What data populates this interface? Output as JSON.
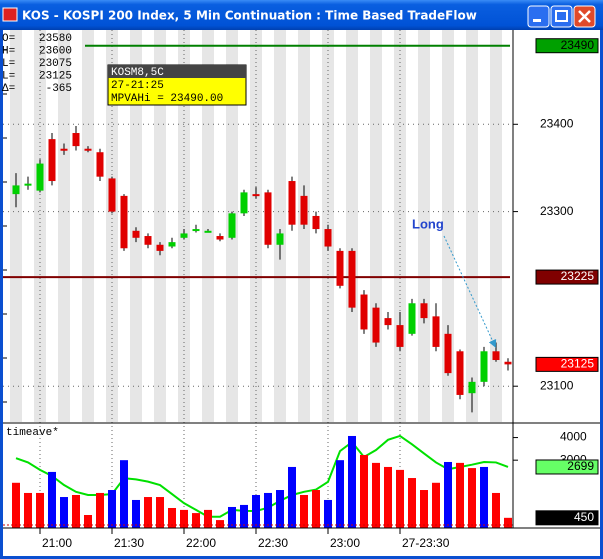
{
  "window": {
    "title": "KOS - KOSPI 200 Index, 5 Min Continuation : Time Based TradeFlow"
  },
  "info": [
    [
      "O=",
      "23580"
    ],
    [
      "H=",
      "23600"
    ],
    [
      "L=",
      "23075"
    ],
    [
      "L=",
      "23125"
    ],
    [
      "Δ=",
      "-365"
    ]
  ],
  "tooltip": [
    "KOSM8,5C",
    "27-21:25",
    "MPVAHi = 23490.00"
  ],
  "chart_data": [
    {
      "type": "candlestick",
      "open": [
        23320,
        23330,
        23324,
        23383,
        23372,
        23390,
        23372,
        23368,
        23338,
        23318,
        23278,
        23272,
        23262,
        23260,
        23270,
        23280,
        23278,
        23272,
        23270,
        23298,
        23320,
        23322,
        23262,
        23335,
        23318,
        23295,
        23280,
        23255,
        23255,
        23205,
        23190,
        23178,
        23170,
        23160,
        23195,
        23180,
        23160,
        23140,
        23092,
        23105,
        23140,
        23128
      ],
      "high": [
        23344,
        23340,
        23360,
        23390,
        23378,
        23398,
        23375,
        23372,
        23340,
        23320,
        23282,
        23275,
        23265,
        23270,
        23280,
        23285,
        23280,
        23275,
        23300,
        23325,
        23328,
        23325,
        23280,
        23340,
        23330,
        23300,
        23285,
        23258,
        23258,
        23210,
        23195,
        23185,
        23185,
        23200,
        23200,
        23195,
        23170,
        23142,
        23110,
        23145,
        23150,
        23132
      ],
      "low": [
        23305,
        23325,
        23322,
        23330,
        23365,
        23370,
        23368,
        23335,
        23298,
        23255,
        23265,
        23258,
        23250,
        23258,
        23268,
        23276,
        23276,
        23266,
        23268,
        23295,
        23315,
        23258,
        23245,
        23278,
        23280,
        23275,
        23255,
        23212,
        23185,
        23160,
        23145,
        23165,
        23140,
        23158,
        23172,
        23140,
        23112,
        23085,
        23070,
        23100,
        23128,
        23118
      ],
      "close": [
        23330,
        23332,
        23355,
        23335,
        23370,
        23375,
        23370,
        23340,
        23300,
        23258,
        23270,
        23262,
        23255,
        23265,
        23275,
        23280,
        23278,
        23268,
        23298,
        23322,
        23318,
        23262,
        23275,
        23285,
        23285,
        23280,
        23260,
        23215,
        23190,
        23165,
        23150,
        23170,
        23145,
        23195,
        23178,
        23145,
        23115,
        23090,
        23105,
        23140,
        23130,
        23125
      ],
      "up_color": "#00d000",
      "down_color": "#e00000",
      "last_color": "#ff0000",
      "ylim": [
        23059,
        23508
      ],
      "yticks": [
        23100,
        23300,
        23400
      ],
      "levels": [
        {
          "value": 23490,
          "color": "#008000",
          "box_color": "#00a000"
        },
        {
          "value": 23225,
          "color": "#800000",
          "box_color": "#800000"
        }
      ],
      "annotation": "Long"
    },
    {
      "type": "bar_line",
      "categories": [
        null,
        null,
        "21:00",
        null,
        null,
        null,
        null,
        null,
        "21:30",
        null,
        null,
        null,
        null,
        null,
        "22:00",
        null,
        null,
        null,
        null,
        null,
        "22:30",
        null,
        null,
        null,
        null,
        null,
        "23:00",
        null,
        null,
        null,
        null,
        null,
        "27-23:30",
        null,
        null,
        null,
        null,
        null,
        null,
        null,
        null,
        null
      ],
      "ylim": [
        0,
        4600
      ],
      "yticks": [
        4000,
        3000
      ],
      "series": [
        {
          "name": "timeave*",
          "type": "line",
          "color": "#00e000",
          "box_color": "#66ff66",
          "values": [
            3090,
            2900,
            2570,
            2300,
            1900,
            1600,
            1460,
            1460,
            1500,
            2200,
            2150,
            2050,
            1900,
            1500,
            1100,
            800,
            500,
            500,
            800,
            760,
            750,
            900,
            1200,
            1460,
            1600,
            1700,
            2040,
            3400,
            3800,
            3140,
            3450,
            3900,
            4070,
            3700,
            3300,
            2900,
            2600,
            2700,
            2800,
            2920,
            2900,
            2699
          ]
        },
        {
          "type": "bar",
          "box_color": "#000000",
          "colors": [
            "#ff0000",
            "#ff0000",
            "#ff0000",
            "#0000ff",
            "#0000ff",
            "#ff0000",
            "#ff0000",
            "#ff0000",
            "#0000ff",
            "#0000ff",
            "#0000ff",
            "#ff0000",
            "#ff0000",
            "#ff0000",
            "#ff0000",
            "#ff0000",
            "#ff0000",
            "#ff0000",
            "#0000ff",
            "#0000ff",
            "#0000ff",
            "#0000ff",
            "#0000ff",
            "#0000ff",
            "#ff0000",
            "#ff0000",
            "#0000ff",
            "#0000ff",
            "#0000ff",
            "#ff0000",
            "#ff0000",
            "#ff0000",
            "#ff0000",
            "#ff0000",
            "#ff0000",
            "#ff0000",
            "#0000ff",
            "#ff0000",
            "#ff0000",
            "#0000ff",
            "#ff0000",
            "#ff0000"
          ],
          "values": [
            2000,
            1550,
            1550,
            2480,
            1370,
            1460,
            575,
            1550,
            1680,
            3000,
            1240,
            1370,
            1370,
            885,
            800,
            660,
            800,
            350,
            930,
            1020,
            1460,
            1550,
            1680,
            2700,
            1460,
            1680,
            1240,
            3000,
            4070,
            3230,
            2880,
            2700,
            2570,
            2210,
            1680,
            2000,
            2920,
            2880,
            2650,
            2700,
            1550,
            450
          ]
        }
      ]
    }
  ]
}
